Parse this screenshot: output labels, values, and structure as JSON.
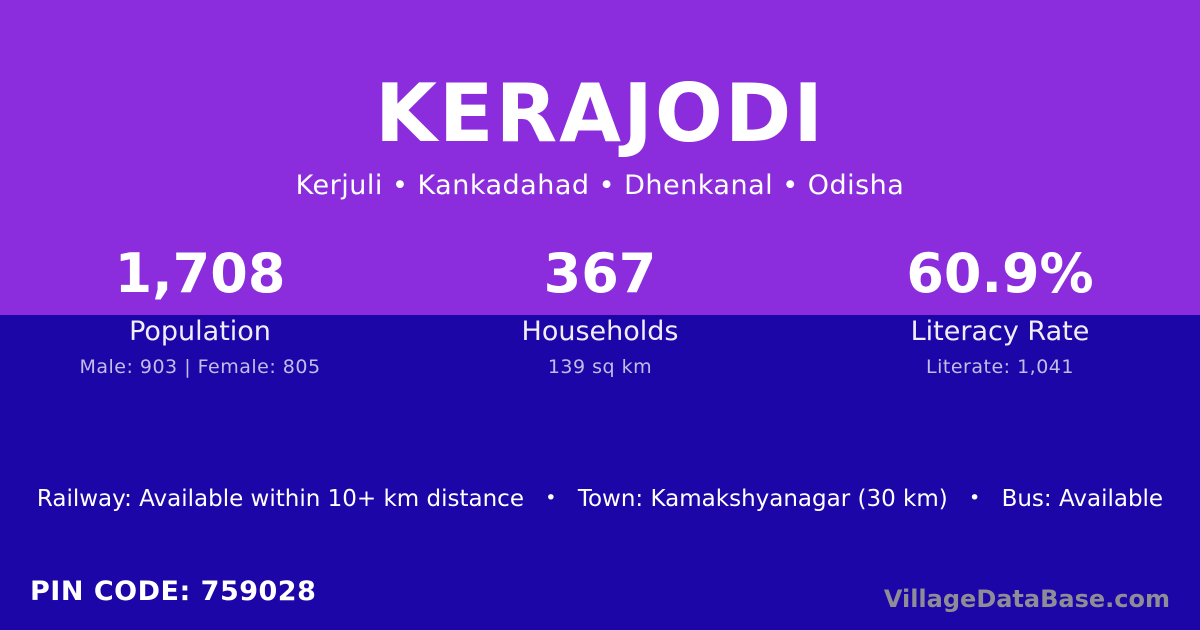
{
  "header": {
    "title": "KERAJODI",
    "subtitle": "Kerjuli • Kankadahad • Dhenkanal • Odisha"
  },
  "stats": [
    {
      "value": "1,708",
      "label": "Population",
      "detail": "Male: 903 | Female: 805"
    },
    {
      "value": "367",
      "label": "Households",
      "detail": "139 sq km"
    },
    {
      "value": "60.9%",
      "label": "Literacy Rate",
      "detail": "Literate: 1,041"
    }
  ],
  "info_bar": {
    "railway": "Railway: Available within 10+ km distance",
    "town": "Town: Kamakshyanagar (30 km)",
    "bus": "Bus: Available",
    "separator": "•"
  },
  "footer": {
    "pin_code": "PIN CODE: 759028",
    "watermark": "VillageDataBase.com"
  },
  "colors": {
    "top_background": "#8B2DDC",
    "bottom_background": "#1C06A7",
    "muted_text": "#C3BCE8",
    "watermark_text": "#8E8C96"
  }
}
